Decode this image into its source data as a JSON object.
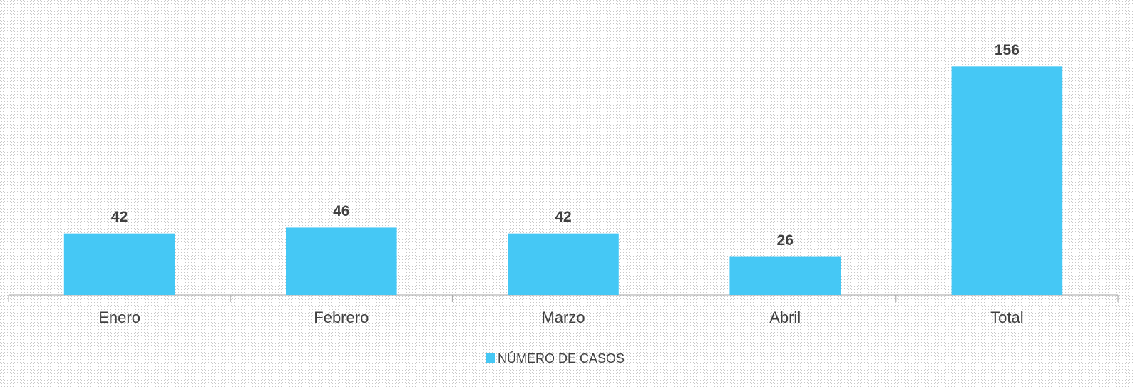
{
  "chart_data": {
    "type": "bar",
    "categories": [
      "Enero",
      "Febrero",
      "Marzo",
      "Abril",
      "Total"
    ],
    "series": [
      {
        "name": "NÚMERO DE CASOS",
        "color": "#45c8f5",
        "values": [
          42,
          46,
          42,
          26,
          156
        ]
      }
    ],
    "ylim": [
      0,
      180
    ],
    "legend": "bottom"
  }
}
